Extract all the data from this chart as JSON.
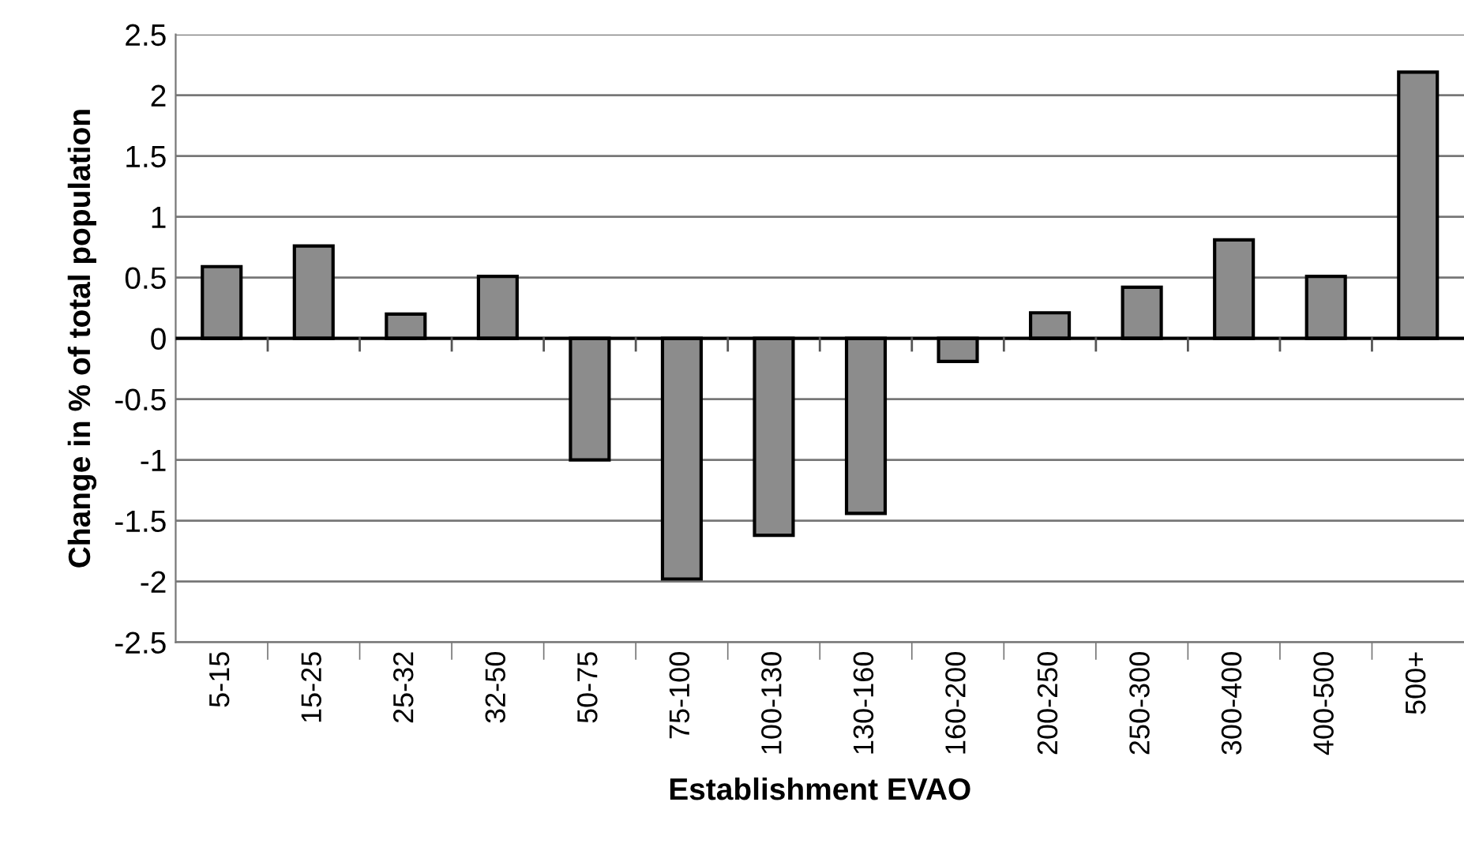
{
  "chart_data": {
    "type": "bar",
    "xlabel": "Establishment EVAO",
    "ylabel": "Change in % of total population",
    "categories": [
      "5-15",
      "15-25",
      "25-32",
      "32-50",
      "50-75",
      "75-100",
      "100-130",
      "130-160",
      "160-200",
      "200-250",
      "250-300",
      "300-400",
      "400-500",
      "500+"
    ],
    "values": [
      0.59,
      0.76,
      0.2,
      0.51,
      -1.0,
      -1.98,
      -1.62,
      -1.44,
      -0.19,
      0.21,
      0.42,
      0.81,
      0.51,
      2.19
    ],
    "color": "#8c8c8c",
    "ylim": [
      -2.5,
      2.5
    ],
    "yticks": [
      -2.5,
      -2,
      -1.5,
      -1,
      -0.5,
      0,
      0.5,
      1,
      1.5,
      2,
      2.5
    ],
    "grid": "y",
    "legend": false
  }
}
